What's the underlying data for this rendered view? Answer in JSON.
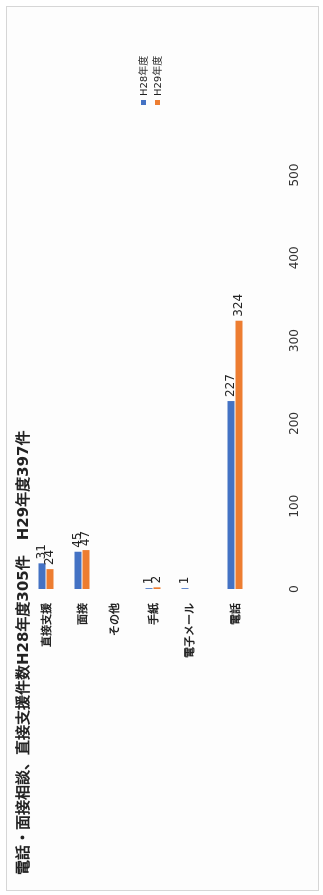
{
  "chart_data": {
    "type": "bar",
    "orientation": "horizontal",
    "title": "電話・面接相談、直接支援件数H28年度305件　H29年度397件",
    "categories": [
      "直接支援",
      "面接",
      "その他",
      "手紙",
      "電子メール",
      "電話"
    ],
    "series": [
      {
        "name": "H28年度",
        "color": "#4472c4",
        "values": [
          31,
          45,
          null,
          1,
          1,
          227
        ]
      },
      {
        "name": "H29年度",
        "color": "#ed7d31",
        "values": [
          24,
          47,
          null,
          2,
          null,
          324
        ]
      }
    ],
    "xlim": [
      0,
      500
    ],
    "xticks": [
      0,
      100,
      200,
      300,
      400,
      500
    ],
    "grid": false,
    "legend": "right"
  }
}
